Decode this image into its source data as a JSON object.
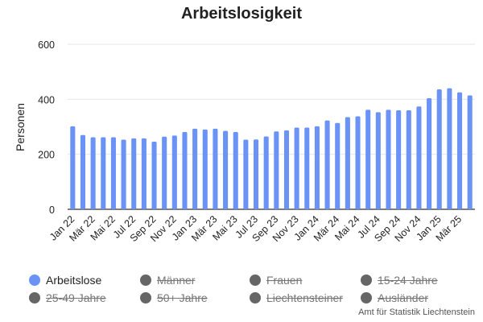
{
  "chart_data": {
    "type": "bar",
    "title": "Arbeitslosigkeit",
    "ylabel": "Personen",
    "xlabel": "",
    "ylim": [
      0,
      600
    ],
    "yticks": [
      "0",
      "200",
      "400",
      "600"
    ],
    "grid": true,
    "legend_position": "bottom",
    "categories": [
      "Jan 22",
      "Feb 22",
      "Mär 22",
      "Apr 22",
      "Mai 22",
      "Jun 22",
      "Jul 22",
      "Aug 22",
      "Sep 22",
      "Okt 22",
      "Nov 22",
      "Dez 22",
      "Jan 23",
      "Feb 23",
      "Mär 23",
      "Apr 23",
      "Mai 23",
      "Jun 23",
      "Jul 23",
      "Aug 23",
      "Sep 23",
      "Okt 23",
      "Nov 23",
      "Dez 23",
      "Jan 24",
      "Feb 24",
      "Mär 24",
      "Apr 24",
      "Mai 24",
      "Jun 24",
      "Jul 24",
      "Aug 24",
      "Sep 24",
      "Okt 24",
      "Nov 24",
      "Dez 24",
      "Jan 25",
      "Feb 25",
      "Mär 25",
      "Apr 25"
    ],
    "xtick_labels": [
      "Jan 22",
      "Mär 22",
      "Mai 22",
      "Jul 22",
      "Sep 22",
      "Nov 22",
      "Jan 23",
      "Mär 23",
      "Mai 23",
      "Jul 23",
      "Sep 23",
      "Nov 23",
      "Jan 24",
      "Mär 24",
      "Mai 24",
      "Jul 24",
      "Sep 24",
      "Nov 24",
      "Jan 25",
      "Mär 25"
    ],
    "series": [
      {
        "name": "Arbeitslose",
        "color": "#6a93f5",
        "values": [
          302,
          270,
          262,
          262,
          262,
          253,
          258,
          258,
          246,
          264,
          268,
          281,
          293,
          290,
          293,
          285,
          281,
          253,
          254,
          265,
          283,
          287,
          297,
          297,
          302,
          323,
          314,
          335,
          338,
          362,
          353,
          362,
          360,
          360,
          374,
          404,
          436,
          440,
          425,
          414
        ]
      }
    ]
  },
  "legend": {
    "items": [
      {
        "label": "Arbeitslose",
        "active": true
      },
      {
        "label": "Männer",
        "active": false
      },
      {
        "label": "Frauen",
        "active": false
      },
      {
        "label": "15-24 Jahre",
        "active": false
      },
      {
        "label": "25-49 Jahre",
        "active": false
      },
      {
        "label": "50+ Jahre",
        "active": false
      },
      {
        "label": "Liechtensteiner",
        "active": false
      },
      {
        "label": "Ausländer",
        "active": false
      }
    ]
  },
  "credit": "Amt für Statistik Liechtenstein",
  "colors": {
    "bar": "#6a93f5",
    "inactive_dot": "#666666",
    "grid": "#e6e6e6",
    "axis": "#333333"
  }
}
